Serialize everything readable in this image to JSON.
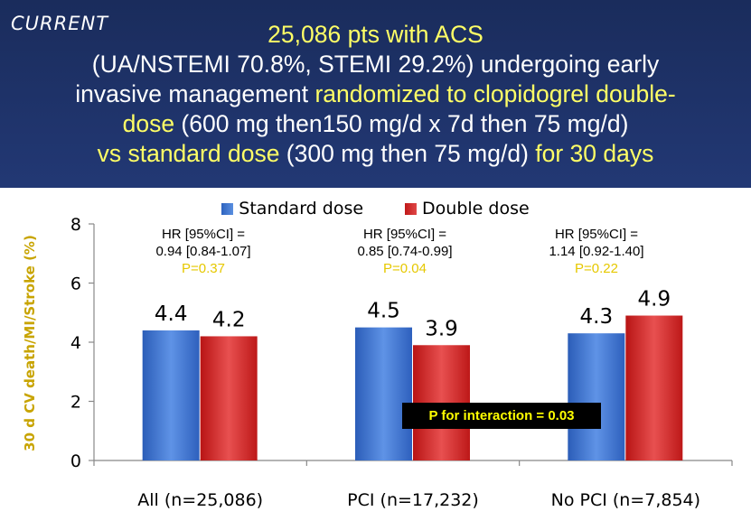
{
  "logo_text": "CURRENT",
  "title": {
    "line1": "25,086 pts with ACS",
    "line2": "(UA/NSTEMI 70.8%, STEMI 29.2%) undergoing early",
    "line3a": "invasive management ",
    "line3b": "randomized to clopidogrel double-",
    "line4a": "dose",
    "line4b": " (600 mg then150 mg/d x 7d then 75 mg/d)",
    "line5a": "vs standard dose",
    "line5b": " (300 mg then 75 mg/d) ",
    "line5c": "for 30 days"
  },
  "annotations": [
    {
      "line1": "HR [95%CI] =",
      "line2": "0.94 [0.84-1.07]",
      "p": "P=0.37"
    },
    {
      "line1": "HR [95%CI] =",
      "line2": "0.85 [0.74-0.99]",
      "p": "P=0.04"
    },
    {
      "line1": "HR [95%CI] =",
      "line2": "1.14 [0.92-1.40]",
      "p": "P=0.22"
    }
  ],
  "interaction_text": "P for interaction = 0.03",
  "colors": {
    "standard": "#3a6fcc",
    "double": "#d42626",
    "highlight": "#ffff66",
    "ylabel": "#c8a400"
  },
  "chart_data": {
    "type": "bar",
    "categories": [
      "All (n=25,086)",
      "PCI (n=17,232)",
      "No PCI (n=7,854)"
    ],
    "series": [
      {
        "name": "Standard dose",
        "values": [
          4.4,
          4.5,
          4.3
        ],
        "labels": [
          "4.4",
          "4.5",
          "4.3"
        ]
      },
      {
        "name": "Double dose",
        "values": [
          4.2,
          3.9,
          4.9
        ],
        "labels": [
          "4.2",
          "3.9",
          "4.9"
        ]
      }
    ],
    "ylabel": "30 d CV death/MI/Stroke (%)",
    "ylim": [
      0,
      8
    ],
    "yticks": [
      "0",
      "2",
      "4",
      "6",
      "8"
    ],
    "grid": false,
    "legend_position": "top"
  }
}
